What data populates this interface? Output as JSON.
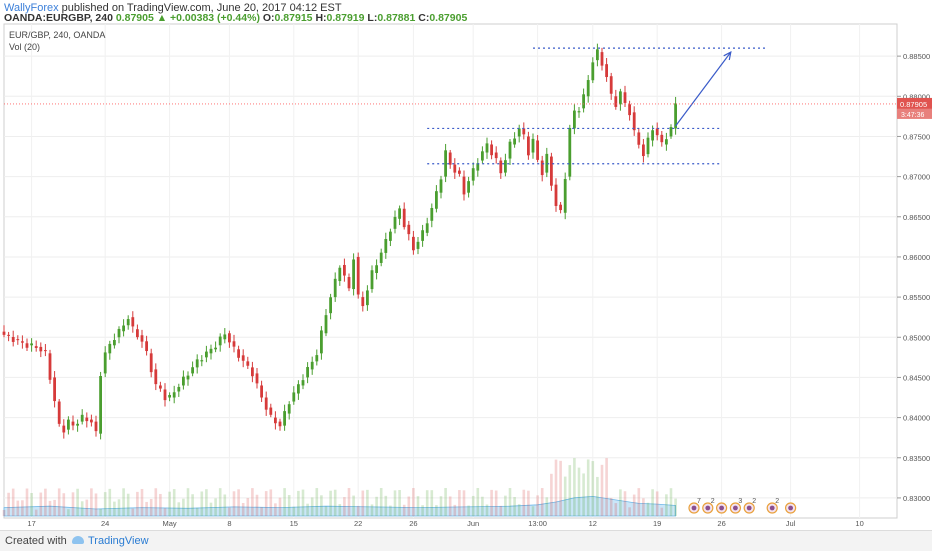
{
  "header": {
    "author": "WallyForex",
    "published_text": "published on TradingView.com, June 20, 2017 04:12 EST",
    "symbol_line": "OANDA:EURGBP, 240",
    "change": "▲ +0.00383 (+0.44%)",
    "last_price": "0.87905",
    "ohlc": {
      "o_label": "O:",
      "o": "0.87915",
      "h_label": "H:",
      "h": "0.87919",
      "l_label": "L:",
      "l": "0.87881",
      "c_label": "C:",
      "c": "0.87905"
    }
  },
  "legend": {
    "symbol": "EUR/GBP, 240, OANDA",
    "volume": "Vol (20)"
  },
  "footer": {
    "created_with": "Created with",
    "brand": "TradingView"
  },
  "colors": {
    "up": "#4a9e2f",
    "down": "#d63a3a",
    "trend_line": "#3a5bc9",
    "price_line": "#ff6060",
    "volume_area": "#9fd2f2"
  },
  "chart_data": {
    "type": "candlestick",
    "ylim": [
      0.8275,
      0.889
    ],
    "y_ticks": [
      "0.88500",
      "0.88000",
      "0.87500",
      "0.87000",
      "0.86500",
      "0.86000",
      "0.85500",
      "0.85000",
      "0.84500",
      "0.84000",
      "0.83500",
      "0.83000"
    ],
    "y_tick_values": [
      0.885,
      0.88,
      0.875,
      0.87,
      0.865,
      0.86,
      0.855,
      0.85,
      0.845,
      0.84,
      0.835,
      0.83
    ],
    "x_ticks": [
      "17",
      "24",
      "May",
      "8",
      "15",
      "22",
      "26",
      "Jun",
      "13:00",
      "12",
      "19",
      "26",
      "Jul",
      "10"
    ],
    "x_tick_index": [
      6,
      22,
      36,
      49,
      63,
      77,
      89,
      102,
      116,
      128,
      142,
      156,
      171,
      186
    ],
    "current_price": {
      "value": 0.87905,
      "label": "0.87905",
      "countdown": "3:47:36"
    },
    "resistance_top": {
      "value": 0.886,
      "from_index": 115,
      "to_index": 166
    },
    "level_middle": {
      "value": 0.876,
      "from_index": 92,
      "to_index": 156
    },
    "support_bottom": {
      "value": 0.8716,
      "from_index": 92,
      "to_index": 156
    },
    "projection_arrow": {
      "from_index": 146,
      "from_value": 0.8763,
      "to_index": 158,
      "to_value": 0.8855
    },
    "price_path": [
      [
        0,
        0.8503
      ],
      [
        3,
        0.8495
      ],
      [
        5,
        0.849
      ],
      [
        7,
        0.8488
      ],
      [
        9,
        0.848
      ],
      [
        10,
        0.845
      ],
      [
        11,
        0.842
      ],
      [
        12,
        0.839
      ],
      [
        13,
        0.8385
      ],
      [
        14,
        0.8395
      ],
      [
        15,
        0.839
      ],
      [
        17,
        0.84
      ],
      [
        19,
        0.8395
      ],
      [
        20,
        0.838
      ],
      [
        21,
        0.8455
      ],
      [
        22,
        0.848
      ],
      [
        24,
        0.85
      ],
      [
        26,
        0.8515
      ],
      [
        27,
        0.8525
      ],
      [
        28,
        0.851
      ],
      [
        30,
        0.8495
      ],
      [
        31,
        0.848
      ],
      [
        32,
        0.846
      ],
      [
        33,
        0.844
      ],
      [
        34,
        0.8435
      ],
      [
        35,
        0.8425
      ],
      [
        36,
        0.8425
      ],
      [
        38,
        0.844
      ],
      [
        40,
        0.8455
      ],
      [
        42,
        0.847
      ],
      [
        44,
        0.848
      ],
      [
        46,
        0.849
      ],
      [
        48,
        0.8505
      ],
      [
        50,
        0.8485
      ],
      [
        52,
        0.847
      ],
      [
        54,
        0.8455
      ],
      [
        56,
        0.8425
      ],
      [
        58,
        0.84
      ],
      [
        60,
        0.839
      ],
      [
        62,
        0.842
      ],
      [
        64,
        0.844
      ],
      [
        66,
        0.846
      ],
      [
        68,
        0.848
      ],
      [
        70,
        0.853
      ],
      [
        72,
        0.857
      ],
      [
        73,
        0.859
      ],
      [
        74,
        0.8575
      ],
      [
        75,
        0.856
      ],
      [
        76,
        0.86
      ],
      [
        77,
        0.855
      ],
      [
        78,
        0.854
      ],
      [
        80,
        0.858
      ],
      [
        82,
        0.8605
      ],
      [
        84,
        0.8635
      ],
      [
        86,
        0.866
      ],
      [
        87,
        0.864
      ],
      [
        88,
        0.8625
      ],
      [
        89,
        0.861
      ],
      [
        91,
        0.863
      ],
      [
        93,
        0.866
      ],
      [
        95,
        0.87
      ],
      [
        96,
        0.873
      ],
      [
        97,
        0.8715
      ],
      [
        99,
        0.87
      ],
      [
        100,
        0.868
      ],
      [
        101,
        0.8695
      ],
      [
        103,
        0.872
      ],
      [
        105,
        0.874
      ],
      [
        107,
        0.872
      ],
      [
        108,
        0.8705
      ],
      [
        110,
        0.874
      ],
      [
        112,
        0.876
      ],
      [
        113,
        0.875
      ],
      [
        114,
        0.873
      ],
      [
        115,
        0.8745
      ],
      [
        116,
        0.872
      ],
      [
        117,
        0.8705
      ],
      [
        118,
        0.8725
      ],
      [
        119,
        0.869
      ],
      [
        120,
        0.8665
      ],
      [
        121,
        0.8655
      ],
      [
        122,
        0.87
      ],
      [
        123,
        0.876
      ],
      [
        124,
        0.878
      ],
      [
        125,
        0.8785
      ],
      [
        126,
        0.88
      ],
      [
        127,
        0.882
      ],
      [
        128,
        0.8845
      ],
      [
        129,
        0.8855
      ],
      [
        130,
        0.884
      ],
      [
        131,
        0.8825
      ],
      [
        132,
        0.88
      ],
      [
        133,
        0.879
      ],
      [
        134,
        0.8805
      ],
      [
        135,
        0.879
      ],
      [
        136,
        0.878
      ],
      [
        137,
        0.8755
      ],
      [
        138,
        0.874
      ],
      [
        139,
        0.8728
      ],
      [
        140,
        0.8745
      ],
      [
        141,
        0.876
      ],
      [
        142,
        0.8752
      ],
      [
        143,
        0.874
      ],
      [
        144,
        0.875
      ],
      [
        145,
        0.876
      ],
      [
        146,
        0.879
      ]
    ],
    "volume_scale_max": 100,
    "volume_path": [
      [
        0,
        12
      ],
      [
        10,
        14
      ],
      [
        20,
        10
      ],
      [
        30,
        12
      ],
      [
        40,
        11
      ],
      [
        50,
        13
      ],
      [
        60,
        12
      ],
      [
        70,
        14
      ],
      [
        80,
        13
      ],
      [
        90,
        12
      ],
      [
        100,
        13
      ],
      [
        110,
        14
      ],
      [
        116,
        16
      ],
      [
        120,
        20
      ],
      [
        124,
        26
      ],
      [
        128,
        28
      ],
      [
        134,
        22
      ],
      [
        138,
        18
      ],
      [
        142,
        17
      ],
      [
        146,
        15
      ]
    ],
    "event_markers": [
      {
        "index": 150,
        "label": "7"
      },
      {
        "index": 153,
        "label": "2"
      },
      {
        "index": 156,
        "label": ""
      },
      {
        "index": 159,
        "label": "3"
      },
      {
        "index": 162,
        "label": "2"
      },
      {
        "index": 167,
        "label": "2"
      },
      {
        "index": 171,
        "label": ""
      }
    ]
  }
}
